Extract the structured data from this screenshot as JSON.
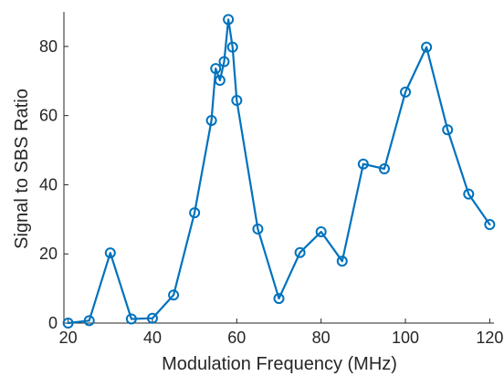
{
  "chart_data": {
    "type": "line",
    "xlabel": "Modulation Frequency (MHz)",
    "ylabel": "Signal to SBS Ratio",
    "xlim": [
      19,
      121
    ],
    "ylim": [
      0,
      90
    ],
    "xticks": [
      20,
      40,
      60,
      80,
      100,
      120
    ],
    "yticks": [
      0,
      20,
      40,
      60,
      80
    ],
    "grid": false,
    "color": "#0072BD",
    "series": [
      {
        "marker": "circle",
        "x": [
          20,
          25,
          30,
          35,
          40,
          45,
          50,
          54,
          55,
          56,
          57,
          58,
          59,
          60,
          65,
          70,
          75,
          80,
          85,
          90,
          95,
          100,
          105,
          110,
          115,
          120
        ],
        "y": [
          0,
          0.7,
          20.3,
          1.2,
          1.4,
          8.1,
          31.9,
          58.6,
          73.6,
          70.2,
          75.6,
          87.8,
          79.8,
          64.4,
          27.2,
          7.1,
          20.4,
          26.4,
          17.9,
          46.0,
          44.6,
          66.8,
          79.8,
          55.9,
          37.3,
          28.5
        ]
      }
    ]
  }
}
